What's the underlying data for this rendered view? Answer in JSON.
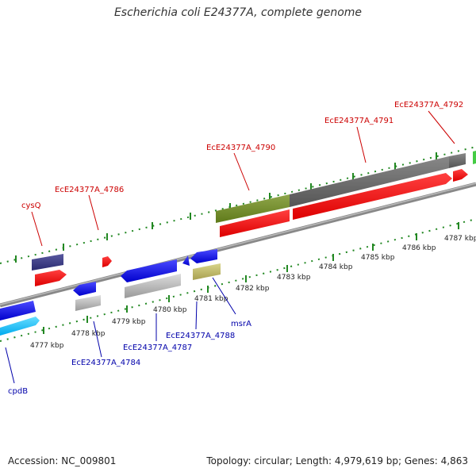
{
  "title": "Escherichia coli E24377A, complete genome",
  "footer": {
    "accession": "Accession: NC_009801",
    "summary": "Topology: circular; Length: 4,979,619 bp; Genes: 4,863"
  },
  "colors": {
    "red_label": "#cc0000",
    "blue_label": "#0000aa",
    "tick": "#228822",
    "backbone": "#888888"
  },
  "axis": {
    "unit": "kbp",
    "ticks": [
      "4777 kbp",
      "4778 kbp",
      "4779 kbp",
      "4780 kbp",
      "4781 kbp",
      "4782 kbp",
      "4783 kbp",
      "4784 kbp",
      "4785 kbp",
      "4786 kbp",
      "4787 kbp"
    ]
  },
  "labels": {
    "top": [
      "cysQ",
      "EcE24377A_4786",
      "EcE24377A_4790",
      "EcE24377A_4791",
      "EcE24377A_4792"
    ],
    "bottom": [
      "cpdB",
      "EcE24377A_4784",
      "EcE24377A_4787",
      "EcE24377A_4788",
      "msrA"
    ]
  }
}
